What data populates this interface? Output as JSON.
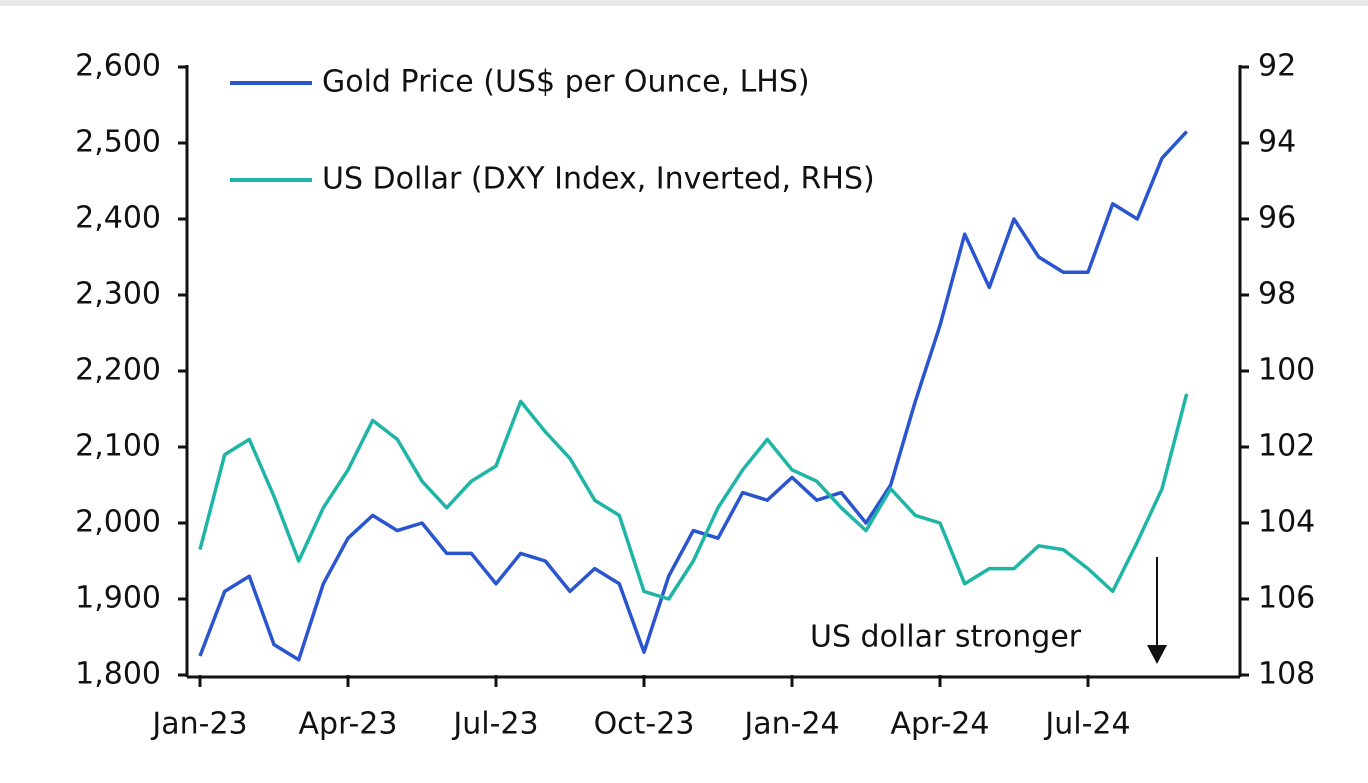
{
  "chart_data": {
    "type": "line",
    "categories": [
      "Jan-23",
      null,
      null,
      null,
      null,
      null,
      "Apr-23",
      null,
      null,
      null,
      null,
      null,
      "Jul-23",
      null,
      null,
      null,
      null,
      null,
      "Oct-23",
      null,
      null,
      null,
      null,
      null,
      "Jan-24",
      null,
      null,
      null,
      null,
      null,
      "Apr-24",
      null,
      null,
      null,
      null,
      null,
      "Jul-24",
      null,
      null,
      null,
      null
    ],
    "series": [
      {
        "name": "Gold Price (US$ per Ounce, LHS)",
        "color": "#2a55cf",
        "values": [
          1825,
          1910,
          1930,
          1840,
          1820,
          1920,
          1980,
          2010,
          1990,
          2000,
          1960,
          1960,
          1920,
          1960,
          1950,
          1910,
          1940,
          1920,
          1830,
          1930,
          1990,
          1980,
          2040,
          2030,
          2060,
          2030,
          2040,
          2000,
          2050,
          2160,
          2260,
          2380,
          2310,
          2400,
          2350,
          2330,
          2330,
          2420,
          2400,
          2480,
          2515
        ]
      },
      {
        "name": "US Dollar (DXY Index, Inverted, RHS)",
        "color": "#1fb5a6",
        "axis": "y2",
        "values": [
          104.7,
          102.2,
          101.8,
          103.3,
          105,
          103.6,
          102.6,
          101.3,
          101.8,
          102.9,
          103.6,
          102.9,
          102.5,
          100.8,
          101.6,
          102.3,
          103.4,
          103.8,
          105.8,
          106,
          105,
          103.6,
          102.6,
          101.8,
          102.6,
          102.9,
          103.6,
          104.2,
          103.1,
          103.8,
          104,
          105.6,
          105.2,
          105.2,
          104.6,
          104.7,
          105.2,
          105.8,
          104.5,
          103.1,
          100.6
        ]
      }
    ],
    "ylim": [
      1800,
      2600
    ],
    "yticks": [
      {
        "value": 1800,
        "label": "1,800"
      },
      {
        "value": 1900,
        "label": "1,900"
      },
      {
        "value": 2000,
        "label": "2,000"
      },
      {
        "value": 2100,
        "label": "2,100"
      },
      {
        "value": 2200,
        "label": "2,200"
      },
      {
        "value": 2300,
        "label": "2,300"
      },
      {
        "value": 2400,
        "label": "2,400"
      },
      {
        "value": 2500,
        "label": "2,500"
      },
      {
        "value": 2600,
        "label": "2,600"
      }
    ],
    "y2lim": [
      92,
      108
    ],
    "y2_inverted": true,
    "y2ticks": [
      92,
      94,
      96,
      98,
      100,
      102,
      104,
      106,
      108
    ],
    "annotation": "US dollar stronger"
  }
}
